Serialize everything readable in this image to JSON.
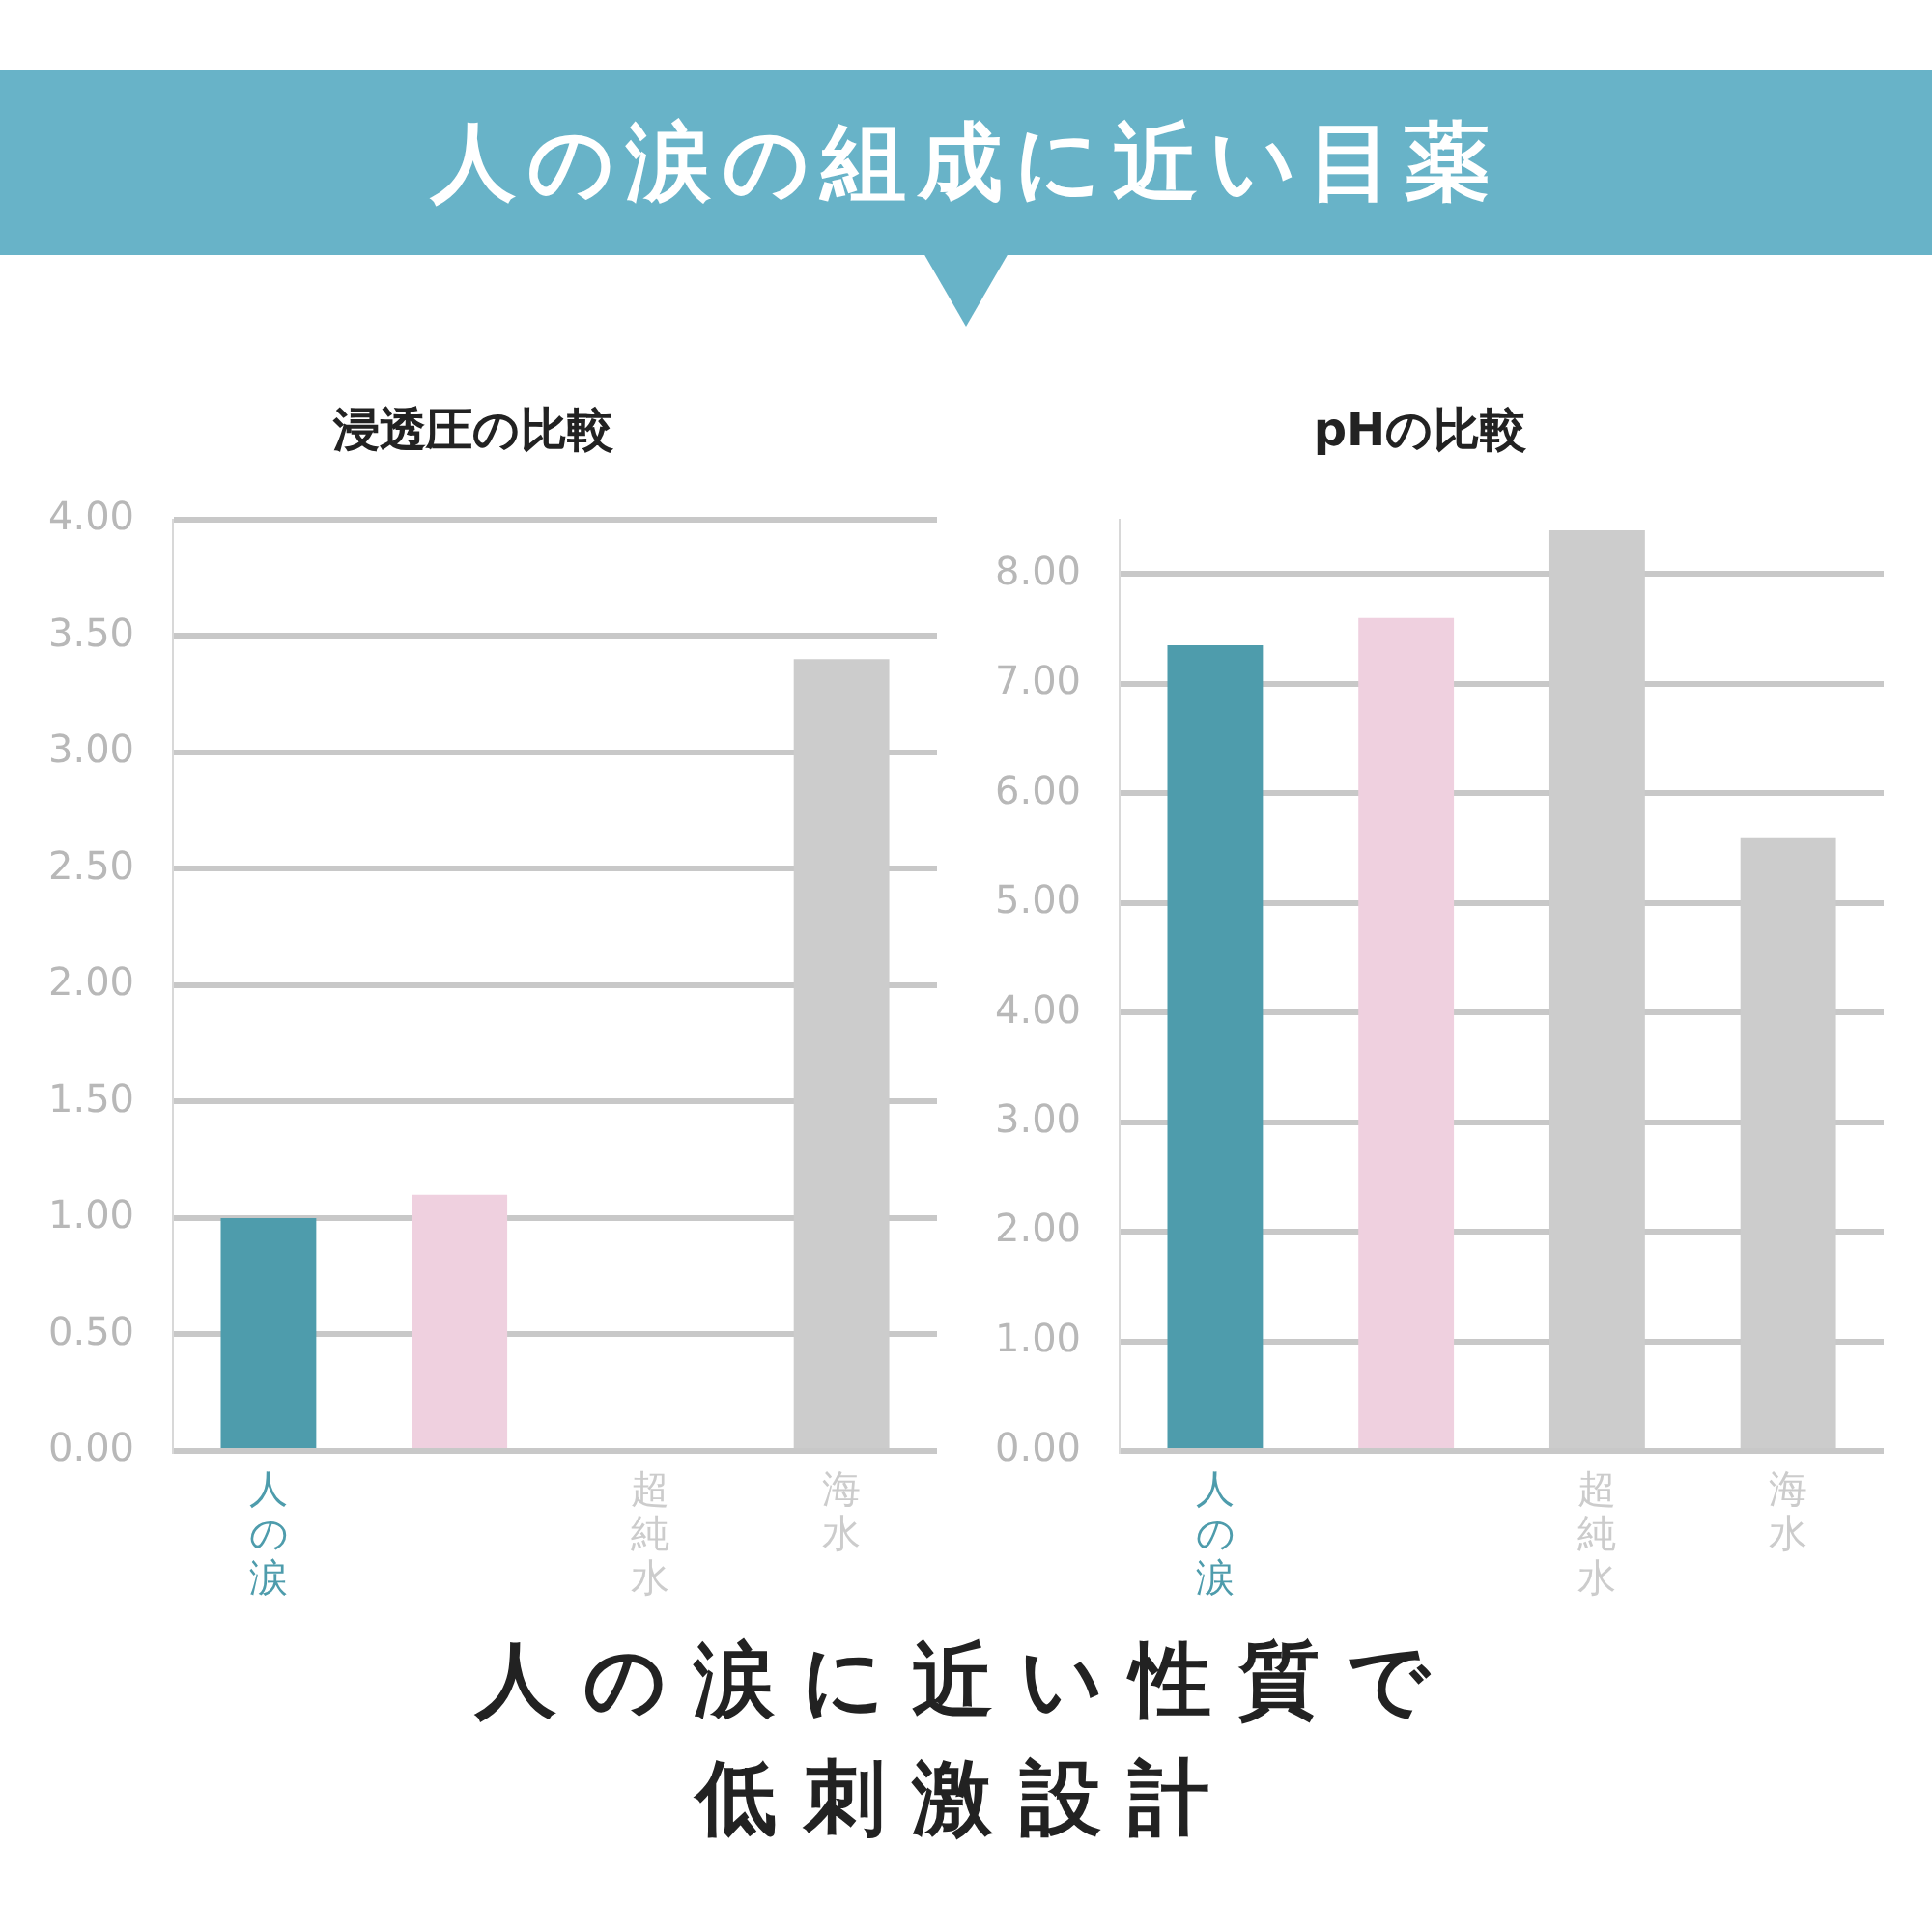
{
  "chart_data": [
    {
      "type": "bar",
      "title": "浸透圧の比較",
      "categories": [
        "人の涙",
        null,
        "超純水",
        "海水"
      ],
      "values": [
        1.0,
        1.1,
        0,
        3.4
      ],
      "colors": [
        "#4e9cac",
        "#efd0df",
        "#cccccc",
        "#cccccc"
      ],
      "ylim": [
        0,
        4
      ],
      "yticks": [
        {
          "value": 0,
          "label": "0.00"
        },
        {
          "value": 0.5,
          "label": "0.50"
        },
        {
          "value": 1,
          "label": "1.00"
        },
        {
          "value": 1.5,
          "label": "1.50"
        },
        {
          "value": 2,
          "label": "2.00"
        },
        {
          "value": 2.5,
          "label": "2.50"
        },
        {
          "value": 3,
          "label": "3.00"
        },
        {
          "value": 3.5,
          "label": "3.50"
        },
        {
          "value": 4,
          "label": "4.00"
        }
      ],
      "grid": "y",
      "legend": false,
      "annotations": [
        "人の涙の組成に近い目薬",
        "人の涙に近い性質で",
        "低刺激設計"
      ]
    },
    {
      "type": "bar",
      "title": "pHの比較",
      "categories": [
        "人の涙",
        null,
        "超純水",
        "海水"
      ],
      "values": [
        7.35,
        7.6,
        8.4,
        5.6
      ],
      "colors": [
        "#4e9cac",
        "#efd0df",
        "#cccccc",
        "#cccccc"
      ],
      "ylim": [
        0,
        8.5
      ],
      "yticks": [
        {
          "value": 0,
          "label": "0.00"
        },
        {
          "value": 1,
          "label": "1.00"
        },
        {
          "value": 2,
          "label": "2.00"
        },
        {
          "value": 3,
          "label": "3.00"
        },
        {
          "value": 4,
          "label": "4.00"
        },
        {
          "value": 5,
          "label": "5.00"
        },
        {
          "value": 6,
          "label": "6.00"
        },
        {
          "value": 7,
          "label": "7.00"
        },
        {
          "value": 8,
          "label": "8.00"
        }
      ],
      "grid": "y",
      "legend": false
    }
  ]
}
